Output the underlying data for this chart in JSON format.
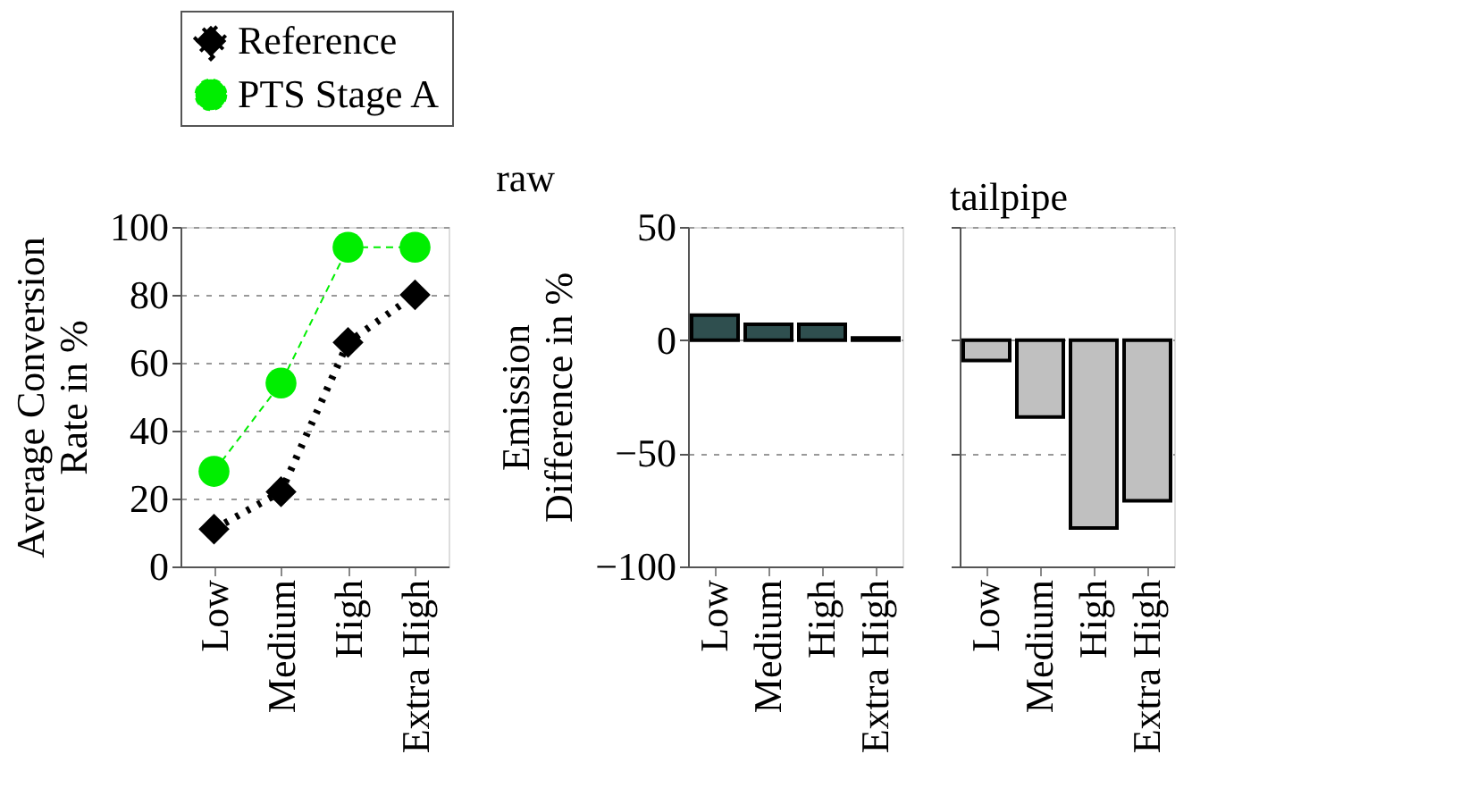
{
  "chart_data": [
    {
      "type": "line",
      "ylabel": "Average Conversion\nRate in %",
      "categories": [
        "Low",
        "Medium",
        "High",
        "Extra High"
      ],
      "series": [
        {
          "name": "Reference",
          "color": "#000000",
          "values": [
            11,
            22,
            66,
            80
          ],
          "marker": "diamond",
          "line_style": "dotted"
        },
        {
          "name": "PTS Stage A",
          "color": "#00ee00",
          "values": [
            28,
            54,
            94,
            94
          ],
          "marker": "circle",
          "line_style": "dashed"
        }
      ],
      "ylim": [
        0,
        100
      ],
      "yticks": [
        0,
        20,
        40,
        60,
        80,
        100
      ],
      "grid": "y",
      "legend": "top"
    },
    {
      "type": "bar",
      "title": "raw",
      "ylabel": "Emission\nDifference in %",
      "categories": [
        "Low",
        "Medium",
        "High",
        "Extra High"
      ],
      "values": [
        11,
        7,
        7,
        1
      ],
      "color": "#2f4f4f",
      "ylim": [
        -100,
        50
      ],
      "yticks": [
        -100,
        -50,
        0,
        50
      ],
      "grid": "y"
    },
    {
      "type": "bar",
      "title": "tailpipe",
      "categories": [
        "Low",
        "Medium",
        "High",
        "Extra High"
      ],
      "values": [
        -9,
        -34,
        -83,
        -71
      ],
      "color": "#c0c0c0",
      "ylim": [
        -100,
        50
      ],
      "yticks": [
        -100,
        -50,
        0,
        50
      ],
      "grid": "y",
      "tick_labels": "x"
    }
  ]
}
